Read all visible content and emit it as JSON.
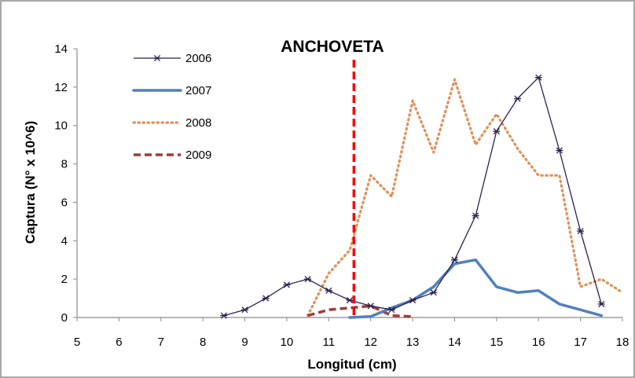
{
  "chart_data": {
    "type": "line",
    "title": "ANCHOVETA",
    "xlabel": "Longitud (cm)",
    "ylabel": "Captura (N° x 10^6)",
    "xlim": [
      5,
      18
    ],
    "ylim": [
      0,
      14
    ],
    "x_ticks": [
      5,
      6,
      7,
      8,
      9,
      10,
      11,
      12,
      13,
      14,
      15,
      16,
      17,
      18
    ],
    "y_ticks": [
      0,
      2,
      4,
      6,
      8,
      10,
      12,
      14
    ],
    "grid": false,
    "legend_position": "top-left",
    "reference_line": {
      "x": 11.6,
      "color": "#ff0000",
      "style": "dashed"
    },
    "series": [
      {
        "name": "2006",
        "color": "#2e1f4f",
        "style": "solid-star-markers",
        "x": [
          8.5,
          9,
          9.5,
          10,
          10.5,
          11,
          11.5,
          12,
          12.5,
          13,
          13.5,
          14,
          14.5,
          15,
          15.5,
          16,
          16.5,
          17,
          17.5
        ],
        "y": [
          0.1,
          0.4,
          1.0,
          1.7,
          2.0,
          1.4,
          0.9,
          0.6,
          0.4,
          0.9,
          1.3,
          3.0,
          5.3,
          9.7,
          11.4,
          12.5,
          8.7,
          4.5,
          0.7
        ]
      },
      {
        "name": "2007",
        "color": "#4f81bd",
        "style": "solid-thick",
        "x": [
          11.5,
          12,
          12.5,
          13,
          13.5,
          14,
          14.5,
          15,
          15.5,
          16,
          16.5,
          17,
          17.5
        ],
        "y": [
          0.0,
          0.05,
          0.5,
          0.9,
          1.6,
          2.8,
          3.0,
          1.6,
          1.3,
          1.4,
          0.7,
          0.4,
          0.1
        ]
      },
      {
        "name": "2008",
        "color": "#e0915a",
        "style": "dotted",
        "x": [
          10.5,
          11,
          11.5,
          12,
          12.5,
          13,
          13.5,
          14,
          14.5,
          15,
          15.5,
          16,
          16.5,
          17,
          17.5,
          18
        ],
        "y": [
          0.1,
          2.3,
          3.5,
          7.4,
          6.3,
          11.3,
          8.6,
          12.4,
          9.0,
          10.6,
          8.8,
          7.4,
          7.4,
          1.6,
          2.0,
          1.3
        ]
      },
      {
        "name": "2009",
        "color": "#a23b3b",
        "style": "dashed",
        "x": [
          10.5,
          11,
          11.5,
          12,
          12.5,
          13
        ],
        "y": [
          0.1,
          0.4,
          0.5,
          0.6,
          0.1,
          0.05
        ]
      }
    ]
  }
}
